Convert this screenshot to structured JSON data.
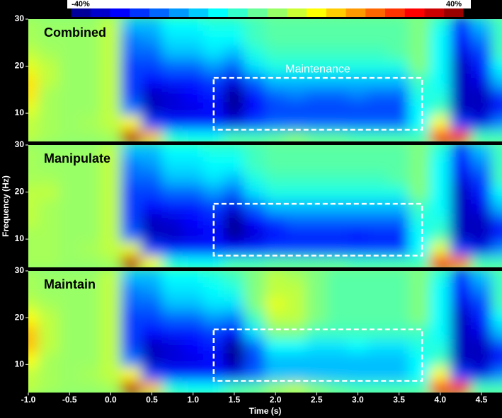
{
  "chart_data": [
    {
      "type": "heatmap",
      "title": "Combined",
      "x": [
        -1.0,
        -0.75,
        -0.5,
        -0.25,
        0,
        0.25,
        0.5,
        0.75,
        1.0,
        1.25,
        1.5,
        1.75,
        2.0,
        2.25,
        2.5,
        2.75,
        3.0,
        3.25,
        3.5,
        3.75,
        4.0,
        4.25,
        4.5,
        4.75
      ],
      "y": [
        5,
        8,
        11,
        14,
        17,
        20,
        23,
        26,
        29
      ],
      "values": [
        [
          5,
          3,
          2,
          2,
          3,
          35,
          15,
          -8,
          -10,
          -10,
          -5,
          -5,
          -3,
          0,
          -3,
          -3,
          -5,
          -5,
          -5,
          -5,
          30,
          25,
          -5,
          -5
        ],
        [
          5,
          3,
          2,
          3,
          5,
          10,
          -25,
          -28,
          -28,
          -28,
          -32,
          -25,
          -22,
          -22,
          -22,
          -22,
          -22,
          -22,
          -22,
          -10,
          10,
          -25,
          -32,
          -20
        ],
        [
          8,
          3,
          2,
          2,
          5,
          -20,
          -35,
          -33,
          -32,
          -30,
          -38,
          -30,
          -25,
          -25,
          -25,
          -25,
          -25,
          -25,
          -25,
          -10,
          -5,
          -35,
          -35,
          -30
        ],
        [
          12,
          3,
          2,
          2,
          5,
          -25,
          -35,
          -33,
          -30,
          -28,
          -38,
          -28,
          -22,
          -20,
          -22,
          -22,
          -20,
          -22,
          -22,
          -8,
          -8,
          -35,
          -35,
          -25
        ],
        [
          12,
          5,
          2,
          2,
          5,
          -25,
          -30,
          -28,
          -28,
          -25,
          -32,
          -22,
          -15,
          -15,
          -15,
          -15,
          -15,
          -15,
          -15,
          -5,
          -10,
          -35,
          -32,
          -15
        ],
        [
          8,
          5,
          2,
          2,
          5,
          -25,
          -25,
          -22,
          -22,
          -18,
          -22,
          -12,
          -8,
          -8,
          -8,
          -8,
          -8,
          -8,
          -8,
          0,
          -10,
          -35,
          -28,
          -10
        ],
        [
          5,
          3,
          2,
          2,
          5,
          -22,
          -22,
          -15,
          -15,
          -12,
          -15,
          -8,
          -5,
          -5,
          -5,
          -5,
          -5,
          -5,
          -3,
          0,
          -10,
          -32,
          -25,
          -5
        ],
        [
          3,
          2,
          2,
          2,
          5,
          -20,
          -18,
          -12,
          -12,
          -10,
          -10,
          -5,
          -3,
          -3,
          -3,
          -3,
          -3,
          -3,
          -3,
          0,
          -10,
          -30,
          -20,
          -5
        ],
        [
          3,
          2,
          2,
          2,
          5,
          -15,
          -15,
          -10,
          -10,
          -8,
          -8,
          -5,
          -3,
          -3,
          -3,
          -3,
          -3,
          -3,
          -3,
          0,
          -8,
          -25,
          -15,
          -5
        ]
      ],
      "xlim": [
        -1.0,
        4.75
      ],
      "ylim": [
        4,
        30
      ],
      "yticks": [
        10,
        20,
        30
      ],
      "box": {
        "x": [
          1.25,
          3.78
        ],
        "y": [
          6.5,
          17.5
        ],
        "label": "Maintenance"
      },
      "colorbar": {
        "lim": [
          -40,
          40
        ],
        "ticks": [
          {
            "value": -40,
            "label": "-40%"
          },
          {
            "value": 40,
            "label": "40%"
          }
        ]
      }
    },
    {
      "type": "heatmap",
      "title": "Manipulate",
      "ylabel": "Frequency (Hz)",
      "x": [
        -1.0,
        -0.75,
        -0.5,
        -0.25,
        0,
        0.25,
        0.5,
        0.75,
        1.0,
        1.25,
        1.5,
        1.75,
        2.0,
        2.25,
        2.5,
        2.75,
        3.0,
        3.25,
        3.5,
        3.75,
        4.0,
        4.25,
        4.5,
        4.75
      ],
      "y": [
        5,
        8,
        11,
        14,
        17,
        20,
        23,
        26,
        29
      ],
      "values": [
        [
          3,
          3,
          2,
          2,
          3,
          35,
          10,
          -8,
          -10,
          -10,
          -5,
          -5,
          -3,
          -3,
          -3,
          -3,
          -5,
          -5,
          -5,
          -5,
          28,
          20,
          -5,
          -5
        ],
        [
          3,
          3,
          2,
          3,
          5,
          8,
          -25,
          -28,
          -28,
          -28,
          -30,
          -28,
          -25,
          -25,
          -25,
          -25,
          -25,
          -25,
          -25,
          -10,
          8,
          -25,
          -32,
          -20
        ],
        [
          3,
          3,
          2,
          2,
          5,
          -22,
          -35,
          -35,
          -32,
          -30,
          -38,
          -33,
          -30,
          -28,
          -28,
          -28,
          -30,
          -28,
          -28,
          -10,
          -5,
          -35,
          -35,
          -30
        ],
        [
          5,
          3,
          2,
          2,
          5,
          -25,
          -35,
          -33,
          -30,
          -28,
          -38,
          -30,
          -25,
          -22,
          -22,
          -22,
          -22,
          -22,
          -22,
          -8,
          -8,
          -35,
          -35,
          -25
        ],
        [
          5,
          3,
          2,
          2,
          5,
          -25,
          -30,
          -28,
          -28,
          -25,
          -32,
          -22,
          -15,
          -15,
          -15,
          -15,
          -15,
          -15,
          -15,
          -5,
          -10,
          -35,
          -32,
          -15
        ],
        [
          5,
          5,
          2,
          2,
          5,
          -25,
          -25,
          -22,
          -22,
          -18,
          -22,
          -12,
          -8,
          -8,
          -8,
          -8,
          -8,
          -8,
          -8,
          0,
          -10,
          -35,
          -28,
          -10
        ],
        [
          3,
          3,
          2,
          2,
          5,
          -22,
          -22,
          -15,
          -15,
          -12,
          -15,
          -8,
          -5,
          -5,
          -5,
          -5,
          -5,
          -5,
          -3,
          0,
          -10,
          -32,
          -25,
          -5
        ],
        [
          3,
          2,
          2,
          2,
          5,
          -20,
          -18,
          -12,
          -12,
          -10,
          -10,
          -5,
          -3,
          -3,
          -3,
          -3,
          -3,
          -3,
          -3,
          0,
          -10,
          -30,
          -20,
          -5
        ],
        [
          3,
          2,
          2,
          2,
          5,
          -15,
          -15,
          -10,
          -10,
          -8,
          -8,
          -5,
          -3,
          -3,
          -3,
          -3,
          -3,
          -3,
          -3,
          0,
          -8,
          -25,
          -15,
          -5
        ]
      ],
      "xlim": [
        -1.0,
        4.75
      ],
      "ylim": [
        4,
        30
      ],
      "yticks": [
        10,
        20,
        30
      ],
      "box": {
        "x": [
          1.25,
          3.78
        ],
        "y": [
          6.5,
          17.5
        ]
      }
    },
    {
      "type": "heatmap",
      "title": "Maintain",
      "xlabel": "Time (s)",
      "x": [
        -1.0,
        -0.75,
        -0.5,
        -0.25,
        0,
        0.25,
        0.5,
        0.75,
        1.0,
        1.25,
        1.5,
        1.75,
        2.0,
        2.25,
        2.5,
        2.75,
        3.0,
        3.25,
        3.5,
        3.75,
        4.0,
        4.25,
        4.5,
        4.75
      ],
      "y": [
        5,
        8,
        11,
        14,
        17,
        20,
        23,
        26,
        29
      ],
      "values": [
        [
          5,
          3,
          2,
          2,
          3,
          35,
          15,
          -8,
          -10,
          -10,
          -5,
          -3,
          2,
          5,
          0,
          -3,
          -5,
          -5,
          -5,
          -5,
          28,
          25,
          -5,
          -5
        ],
        [
          5,
          3,
          2,
          3,
          5,
          10,
          -25,
          -28,
          -28,
          -28,
          -32,
          -22,
          -15,
          -15,
          -15,
          -15,
          -15,
          -15,
          -15,
          -10,
          10,
          -25,
          -32,
          -20
        ],
        [
          10,
          3,
          2,
          2,
          5,
          -20,
          -35,
          -33,
          -32,
          -30,
          -38,
          -25,
          -15,
          -15,
          -15,
          -15,
          -15,
          -15,
          -15,
          -10,
          -5,
          -35,
          -35,
          -30
        ],
        [
          15,
          5,
          2,
          2,
          5,
          -25,
          -35,
          -33,
          -30,
          -28,
          -38,
          -22,
          -10,
          -10,
          -12,
          -12,
          -10,
          -12,
          -12,
          -8,
          -8,
          -35,
          -35,
          -25
        ],
        [
          15,
          5,
          2,
          2,
          5,
          -25,
          -30,
          -28,
          -28,
          -25,
          -30,
          -12,
          0,
          0,
          -5,
          -5,
          -5,
          -5,
          -5,
          -5,
          -10,
          -35,
          -32,
          -15
        ],
        [
          10,
          5,
          2,
          2,
          5,
          -25,
          -25,
          -22,
          -22,
          -18,
          -20,
          -5,
          5,
          5,
          0,
          -3,
          -3,
          -3,
          -3,
          0,
          -10,
          -35,
          -28,
          -10
        ],
        [
          5,
          3,
          2,
          2,
          5,
          -22,
          -22,
          -15,
          -15,
          -12,
          -12,
          0,
          8,
          5,
          0,
          -3,
          -3,
          -3,
          -3,
          0,
          -10,
          -32,
          -25,
          -5
        ],
        [
          3,
          2,
          2,
          2,
          5,
          -20,
          -18,
          -12,
          -12,
          -10,
          -8,
          0,
          5,
          5,
          0,
          -3,
          -3,
          -3,
          -3,
          0,
          -10,
          -30,
          -20,
          -5
        ],
        [
          3,
          2,
          2,
          2,
          5,
          -15,
          -15,
          -10,
          -10,
          -8,
          -5,
          0,
          5,
          3,
          0,
          -3,
          -3,
          -3,
          -3,
          0,
          -8,
          -25,
          -15,
          -5
        ]
      ],
      "xlim": [
        -1.0,
        4.75
      ],
      "ylim": [
        4,
        30
      ],
      "yticks": [
        10,
        20,
        30
      ],
      "xticks": [
        {
          "value": -1,
          "label": "-1.0"
        },
        {
          "value": -0.5,
          "label": "-0.5"
        },
        {
          "value": 0,
          "label": "0.0"
        },
        0.5,
        {
          "value": 1,
          "label": "1.0"
        },
        1.5,
        {
          "value": 2,
          "label": "2.0"
        },
        2.5,
        {
          "value": 3,
          "label": "3.0"
        },
        3.5,
        {
          "value": 4,
          "label": "4.0"
        },
        4.5
      ],
      "box": {
        "x": [
          1.25,
          3.78
        ],
        "y": [
          6.5,
          17.5
        ]
      }
    }
  ]
}
